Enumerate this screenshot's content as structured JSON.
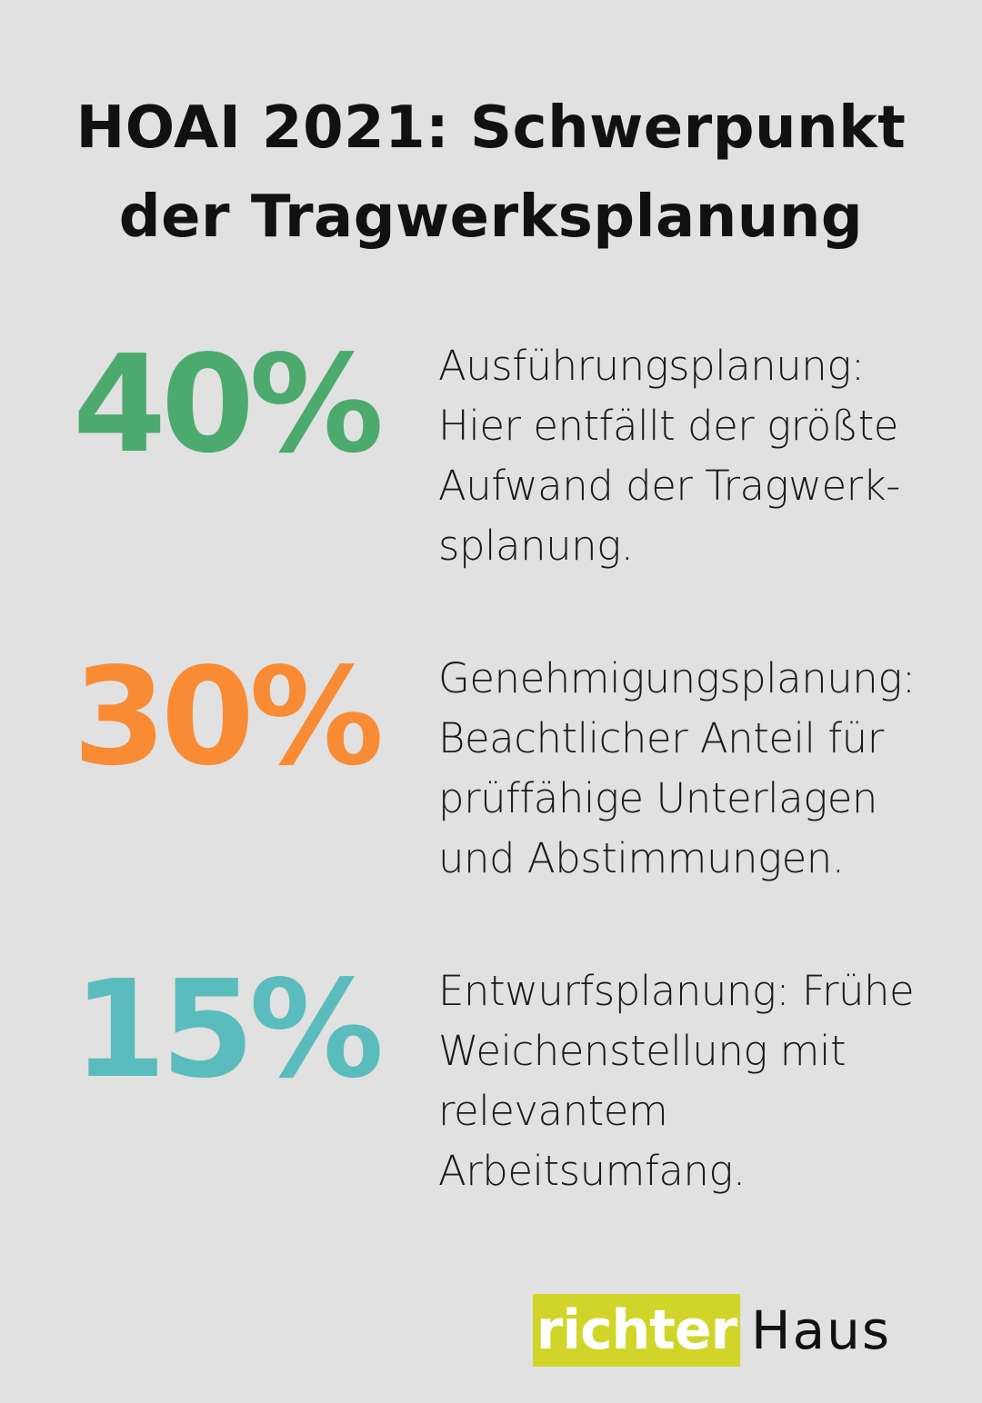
{
  "title": {
    "line1": "HOAI 2021: Schwerpunkt",
    "line2": "der Tragwerksplanung"
  },
  "items": [
    {
      "percent": "40%",
      "color": "#4caa6e",
      "lines": [
        "Ausführungsplanung:",
        "Hier entfällt der größte",
        "Aufwand der Tragwerk-",
        "splanung."
      ]
    },
    {
      "percent": "30%",
      "color": "#f98b35",
      "lines": [
        "Genehmigungsplanung:",
        "Beachtlicher Anteil für",
        "prüffähige Unterlagen",
        "und Abstimmungen."
      ]
    },
    {
      "percent": "15%",
      "color": "#5bbcbd",
      "lines": [
        "Entwurfsplanung: Frühe",
        "Weichenstellung mit",
        "relevantem",
        "Arbeitsumfang."
      ]
    }
  ],
  "logo": {
    "part1": "richter",
    "part2": "Haus",
    "color": "#d1d52a"
  }
}
